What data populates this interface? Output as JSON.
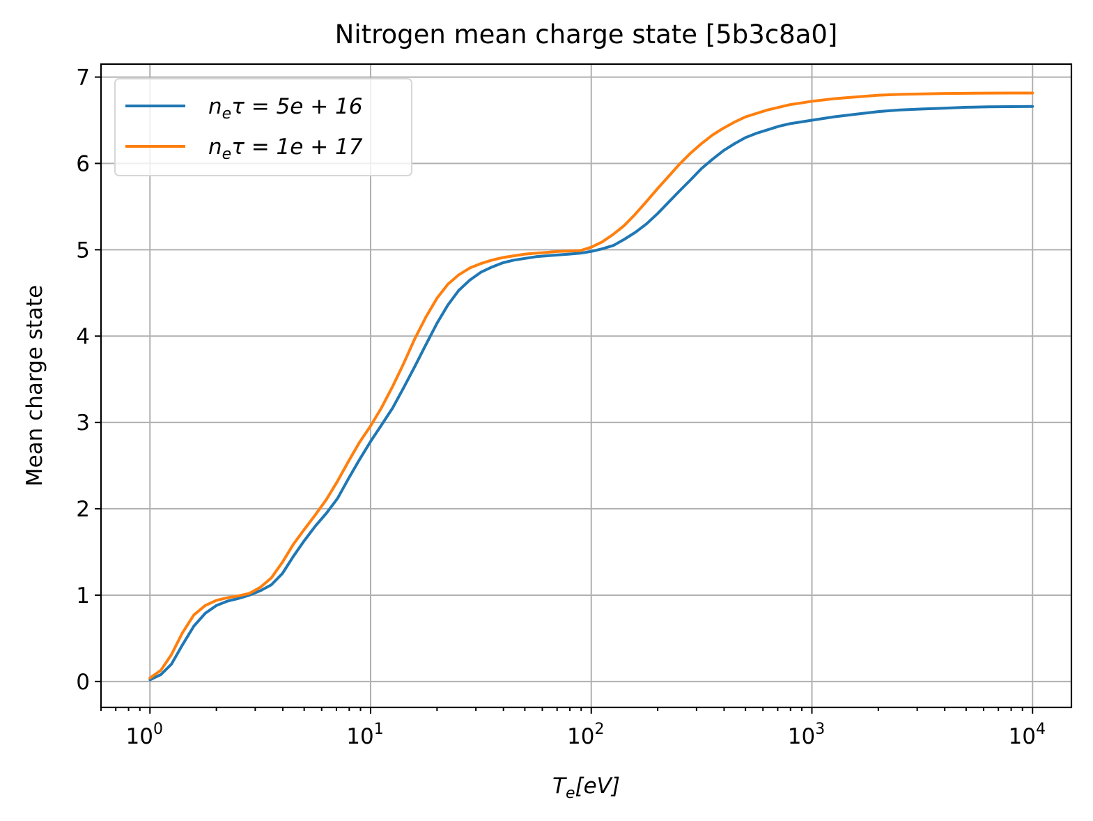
{
  "chart_data": {
    "type": "line",
    "title": "Nitrogen mean charge state [5b3c8a0]",
    "xlabel": "T_e[eV]",
    "ylabel": "Mean charge state",
    "xscale": "log",
    "xlim": [
      0.6,
      15000
    ],
    "ylim": [
      -0.3,
      7.15
    ],
    "xticks": [
      {
        "value": 1,
        "base": "10",
        "exp": "0"
      },
      {
        "value": 10,
        "base": "10",
        "exp": "1"
      },
      {
        "value": 100,
        "base": "10",
        "exp": "2"
      },
      {
        "value": 1000,
        "base": "10",
        "exp": "3"
      },
      {
        "value": 10000,
        "base": "10",
        "exp": "4"
      }
    ],
    "yticks": [
      {
        "value": 0,
        "label": "0"
      },
      {
        "value": 1,
        "label": "1"
      },
      {
        "value": 2,
        "label": "2"
      },
      {
        "value": 3,
        "label": "3"
      },
      {
        "value": 4,
        "label": "4"
      },
      {
        "value": 5,
        "label": "5"
      },
      {
        "value": 6,
        "label": "6"
      },
      {
        "value": 7,
        "label": "7"
      }
    ],
    "grid": true,
    "legend_position": "top-left",
    "series": [
      {
        "name": "n_eτ = 5e + 16",
        "legend": {
          "sym": "n",
          "sub": "e",
          "rest": "τ = 5e + 16"
        },
        "color": "#1f77b4",
        "x": [
          1,
          1.12,
          1.25,
          1.4,
          1.58,
          1.78,
          2,
          2.24,
          2.5,
          2.82,
          3.16,
          3.55,
          3.98,
          4.47,
          5,
          5.62,
          6.31,
          7.08,
          7.94,
          8.91,
          10,
          11.2,
          12.6,
          14.1,
          15.8,
          17.8,
          20,
          22.4,
          25.1,
          28.2,
          31.6,
          35.5,
          39.8,
          44.7,
          50,
          56.2,
          63.1,
          70.8,
          79.4,
          89.1,
          100,
          112,
          126,
          141,
          158,
          178,
          200,
          224,
          251,
          282,
          316,
          355,
          398,
          447,
          501,
          562,
          631,
          708,
          794,
          891,
          1000,
          1260,
          1580,
          2000,
          2510,
          3160,
          3980,
          5010,
          6310,
          7940,
          10000
        ],
        "y": [
          0.02,
          0.08,
          0.2,
          0.42,
          0.64,
          0.79,
          0.88,
          0.93,
          0.96,
          1.0,
          1.05,
          1.12,
          1.25,
          1.45,
          1.63,
          1.8,
          1.95,
          2.12,
          2.35,
          2.57,
          2.78,
          2.97,
          3.17,
          3.4,
          3.64,
          3.9,
          4.15,
          4.36,
          4.53,
          4.65,
          4.74,
          4.8,
          4.85,
          4.88,
          4.9,
          4.92,
          4.93,
          4.94,
          4.95,
          4.96,
          4.98,
          5.01,
          5.05,
          5.12,
          5.2,
          5.3,
          5.42,
          5.55,
          5.68,
          5.81,
          5.94,
          6.05,
          6.15,
          6.23,
          6.3,
          6.35,
          6.39,
          6.43,
          6.46,
          6.48,
          6.5,
          6.54,
          6.57,
          6.6,
          6.62,
          6.63,
          6.64,
          6.65,
          6.655,
          6.658,
          6.66
        ]
      },
      {
        "name": "n_eτ = 1e + 17",
        "legend": {
          "sym": "n",
          "sub": "e",
          "rest": "τ = 1e + 17"
        },
        "color": "#ff7f0e",
        "x": [
          1,
          1.12,
          1.25,
          1.4,
          1.58,
          1.78,
          2,
          2.24,
          2.5,
          2.82,
          3.16,
          3.55,
          3.98,
          4.47,
          5,
          5.62,
          6.31,
          7.08,
          7.94,
          8.91,
          10,
          11.2,
          12.6,
          14.1,
          15.8,
          17.8,
          20,
          22.4,
          25.1,
          28.2,
          31.6,
          35.5,
          39.8,
          44.7,
          50,
          56.2,
          63.1,
          70.8,
          79.4,
          89.1,
          100,
          112,
          126,
          141,
          158,
          178,
          200,
          224,
          251,
          282,
          316,
          355,
          398,
          447,
          501,
          562,
          631,
          708,
          794,
          891,
          1000,
          1260,
          1580,
          2000,
          2510,
          3160,
          3980,
          5010,
          6310,
          7940,
          10000
        ],
        "y": [
          0.04,
          0.13,
          0.31,
          0.56,
          0.77,
          0.88,
          0.94,
          0.97,
          0.99,
          1.02,
          1.09,
          1.2,
          1.38,
          1.59,
          1.76,
          1.93,
          2.11,
          2.32,
          2.55,
          2.77,
          2.96,
          3.17,
          3.42,
          3.68,
          3.96,
          4.22,
          4.44,
          4.6,
          4.71,
          4.79,
          4.84,
          4.88,
          4.91,
          4.93,
          4.95,
          4.96,
          4.97,
          4.98,
          4.985,
          4.99,
          5.03,
          5.09,
          5.18,
          5.28,
          5.41,
          5.56,
          5.71,
          5.85,
          5.99,
          6.12,
          6.23,
          6.33,
          6.41,
          6.48,
          6.54,
          6.58,
          6.62,
          6.65,
          6.68,
          6.7,
          6.72,
          6.75,
          6.77,
          6.79,
          6.8,
          6.805,
          6.81,
          6.812,
          6.814,
          6.815,
          6.815
        ]
      }
    ]
  }
}
